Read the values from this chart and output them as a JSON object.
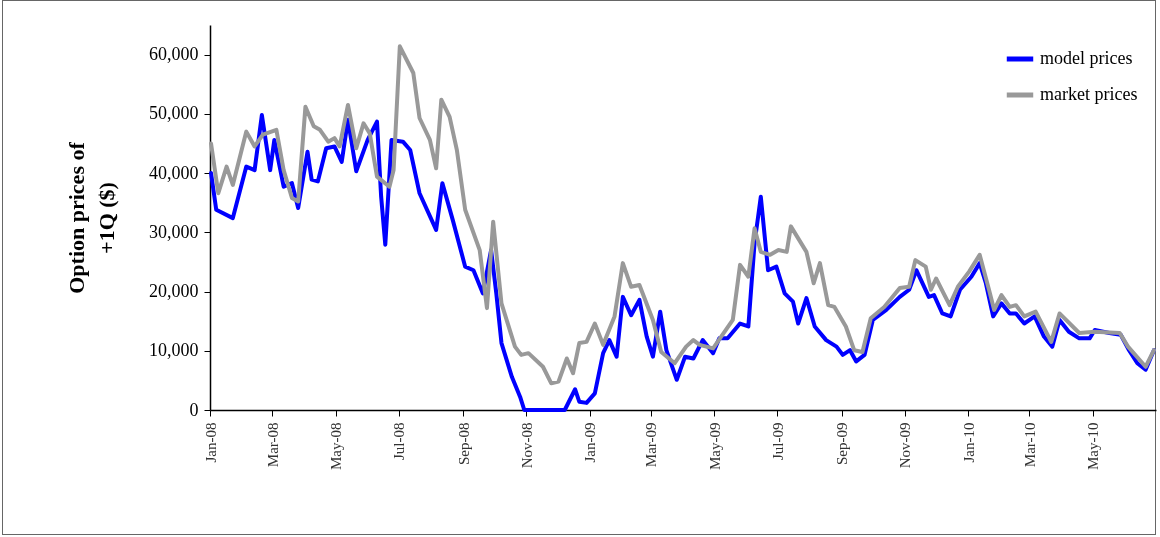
{
  "chart_data": {
    "type": "line",
    "ylabel": "Option prices of\n+1Q ($)",
    "xlim": [
      "2008-01-01",
      "2010-07-01"
    ],
    "ylim": [
      0,
      65000
    ],
    "yticks": [
      0,
      {
        "value": 10000,
        "label": "10,000"
      },
      {
        "value": 20000,
        "label": "20,000"
      },
      {
        "value": 30000,
        "label": "30,000"
      },
      {
        "value": 40000,
        "label": "40,000"
      },
      {
        "value": 50000,
        "label": "50,000"
      },
      {
        "value": 60000,
        "label": "60,000"
      }
    ],
    "xticks": [
      {
        "value": "2008-01-01",
        "label": "Jan-08"
      },
      {
        "value": "2008-03-01",
        "label": "Mar-08"
      },
      {
        "value": "2008-05-01",
        "label": "May-08"
      },
      {
        "value": "2008-07-01",
        "label": "Jul-08"
      },
      {
        "value": "2008-09-01",
        "label": "Sep-08"
      },
      {
        "value": "2008-11-01",
        "label": "Nov-08"
      },
      {
        "value": "2009-01-01",
        "label": "Jan-09"
      },
      {
        "value": "2009-03-01",
        "label": "Mar-09"
      },
      {
        "value": "2009-05-01",
        "label": "May-09"
      },
      {
        "value": "2009-07-01",
        "label": "Jul-09"
      },
      {
        "value": "2009-09-01",
        "label": "Sep-09"
      },
      {
        "value": "2009-11-01",
        "label": "Nov-09"
      },
      {
        "value": "2010-01-01",
        "label": "Jan-10"
      },
      {
        "value": "2010-03-01",
        "label": "Mar-10"
      },
      {
        "value": "2010-05-01",
        "label": "May-10"
      }
    ],
    "grid": false,
    "legend": "top right",
    "marker": "none",
    "line_style": "solid",
    "series": [
      {
        "name": "model prices",
        "color": "#0000ff",
        "x": [
          "2008-01-02",
          "2008-01-07",
          "2008-01-23",
          "2008-02-05",
          "2008-02-13",
          "2008-02-20",
          "2008-02-28",
          "2008-03-03",
          "2008-03-12",
          "2008-03-20",
          "2008-03-26",
          "2008-04-04",
          "2008-04-08",
          "2008-04-14",
          "2008-04-22",
          "2008-04-30",
          "2008-05-07",
          "2008-05-13",
          "2008-05-21",
          "2008-06-01",
          "2008-06-10",
          "2008-06-14",
          "2008-06-18",
          "2008-06-24",
          "2008-07-05",
          "2008-07-12",
          "2008-07-21",
          "2008-08-06",
          "2008-08-12",
          "2008-08-22",
          "2008-09-03",
          "2008-09-11",
          "2008-09-20",
          "2008-09-28",
          "2008-10-03",
          "2008-10-08",
          "2008-10-18",
          "2008-10-26",
          "2008-10-30",
          "2008-12-08",
          "2008-12-18",
          "2008-12-22",
          "2008-12-29",
          "2009-01-06",
          "2009-01-14",
          "2009-01-20",
          "2009-01-27",
          "2009-02-02",
          "2009-02-10",
          "2009-02-18",
          "2009-02-25",
          "2009-03-03",
          "2009-03-10",
          "2009-03-16",
          "2009-03-26",
          "2009-04-03",
          "2009-04-11",
          "2009-04-20",
          "2009-04-30",
          "2009-05-06",
          "2009-05-14",
          "2009-05-26",
          "2009-06-03",
          "2009-06-09",
          "2009-06-15",
          "2009-06-22",
          "2009-06-30",
          "2009-07-08",
          "2009-07-16",
          "2009-07-21",
          "2009-07-29",
          "2009-08-06",
          "2009-08-17",
          "2009-08-27",
          "2009-09-02",
          "2009-09-09",
          "2009-09-15",
          "2009-09-23",
          "2009-10-01",
          "2009-10-14",
          "2009-10-27",
          "2009-11-05",
          "2009-11-12",
          "2009-11-24",
          "2009-11-29",
          "2009-12-07",
          "2009-12-15",
          "2009-12-24",
          "2010-01-04",
          "2010-01-12",
          "2010-01-18",
          "2010-01-25",
          "2010-02-02",
          "2010-02-10",
          "2010-02-16",
          "2010-02-24",
          "2010-03-06",
          "2010-03-15",
          "2010-03-23",
          "2010-03-30",
          "2010-04-08",
          "2010-04-18",
          "2010-04-28",
          "2010-05-03",
          "2010-05-17",
          "2010-05-28",
          "2010-06-05",
          "2010-06-13",
          "2010-06-21",
          "2010-06-29"
        ],
        "values": [
          40000,
          33800,
          32400,
          41100,
          40500,
          49800,
          40500,
          45600,
          37700,
          38300,
          34100,
          43600,
          38900,
          38600,
          44200,
          44500,
          41900,
          49000,
          40300,
          45600,
          48700,
          36000,
          27900,
          45600,
          45300,
          43900,
          36600,
          30400,
          38300,
          32100,
          24200,
          23600,
          19700,
          27000,
          19700,
          11300,
          5600,
          2200,
          0,
          0,
          3500,
          1400,
          1200,
          2800,
          9600,
          11800,
          9000,
          19100,
          16000,
          18600,
          12400,
          9000,
          16600,
          10100,
          5100,
          9000,
          8700,
          11800,
          9600,
          12100,
          12100,
          14600,
          14100,
          28200,
          36000,
          23600,
          24200,
          19700,
          18300,
          14600,
          18900,
          14100,
          11800,
          10700,
          9300,
          10100,
          8200,
          9300,
          15200,
          16900,
          19100,
          20300,
          23600,
          19100,
          19400,
          16300,
          15800,
          20300,
          22500,
          24800,
          21400,
          15800,
          18000,
          16300,
          16300,
          14600,
          15800,
          12400,
          10700,
          15200,
          13200,
          12100,
          12100,
          13500,
          13000,
          12700,
          10100,
          7900,
          6800,
          10100
        ]
      },
      {
        "name": "market prices",
        "color": "#999999",
        "x": [
          "2008-01-02",
          "2008-01-09",
          "2008-01-17",
          "2008-01-23",
          "2008-02-05",
          "2008-02-13",
          "2008-02-21",
          "2008-03-05",
          "2008-03-12",
          "2008-03-20",
          "2008-03-26",
          "2008-04-02",
          "2008-04-10",
          "2008-04-16",
          "2008-04-24",
          "2008-04-30",
          "2008-05-05",
          "2008-05-13",
          "2008-05-21",
          "2008-05-28",
          "2008-06-03",
          "2008-06-10",
          "2008-06-22",
          "2008-06-26",
          "2008-07-02",
          "2008-07-15",
          "2008-07-21",
          "2008-07-31",
          "2008-08-06",
          "2008-08-11",
          "2008-08-19",
          "2008-08-26",
          "2008-09-03",
          "2008-09-17",
          "2008-09-24",
          "2008-09-30",
          "2008-10-08",
          "2008-10-21",
          "2008-10-27",
          "2008-11-03",
          "2008-11-17",
          "2008-11-25",
          "2008-12-02",
          "2008-12-10",
          "2008-12-16",
          "2008-12-22",
          "2008-12-29",
          "2009-01-06",
          "2009-01-14",
          "2009-01-25",
          "2009-02-02",
          "2009-02-10",
          "2009-02-18",
          "2009-03-03",
          "2009-03-11",
          "2009-03-24",
          "2009-04-04",
          "2009-04-11",
          "2009-04-17",
          "2009-04-30",
          "2009-05-19",
          "2009-05-26",
          "2009-06-03",
          "2009-06-09",
          "2009-06-15",
          "2009-06-24",
          "2009-07-02",
          "2009-07-10",
          "2009-07-14",
          "2009-07-29",
          "2009-08-05",
          "2009-08-11",
          "2009-08-19",
          "2009-08-25",
          "2009-09-05",
          "2009-09-13",
          "2009-09-21",
          "2009-09-29",
          "2009-10-12",
          "2009-10-27",
          "2009-11-05",
          "2009-11-11",
          "2009-11-21",
          "2009-11-26",
          "2009-12-01",
          "2009-12-14",
          "2009-12-22",
          "2010-01-02",
          "2010-01-12",
          "2010-01-21",
          "2010-01-26",
          "2010-02-02",
          "2010-02-10",
          "2010-02-16",
          "2010-02-24",
          "2010-03-07",
          "2010-03-22",
          "2010-03-30",
          "2010-04-18",
          "2010-05-03",
          "2010-05-27",
          "2010-06-04",
          "2010-06-21",
          "2010-06-29"
        ],
        "values": [
          45000,
          36600,
          41100,
          38000,
          47000,
          44500,
          46500,
          47300,
          40500,
          35800,
          35200,
          51200,
          47900,
          47300,
          45300,
          45900,
          44500,
          51500,
          44200,
          48400,
          46700,
          39400,
          37700,
          40500,
          61400,
          56900,
          49300,
          45600,
          40800,
          52400,
          49500,
          43900,
          33800,
          27000,
          17200,
          31800,
          18000,
          10700,
          9300,
          9600,
          7300,
          4500,
          4800,
          8700,
          6200,
          11300,
          11500,
          14600,
          11000,
          15800,
          24800,
          20800,
          21100,
          15200,
          9800,
          7900,
          10700,
          11800,
          11000,
          10400,
          15200,
          24500,
          22500,
          30700,
          26700,
          26200,
          27000,
          26700,
          31000,
          26700,
          21400,
          24800,
          17700,
          17400,
          14100,
          10100,
          9800,
          15500,
          17400,
          20600,
          20800,
          25300,
          24200,
          20300,
          22200,
          17700,
          20800,
          23400,
          26200,
          20300,
          16900,
          19400,
          17400,
          17700,
          15800,
          16600,
          11500,
          16300,
          13000,
          13200,
          13000,
          10700,
          7300,
          10100
        ]
      }
    ]
  }
}
